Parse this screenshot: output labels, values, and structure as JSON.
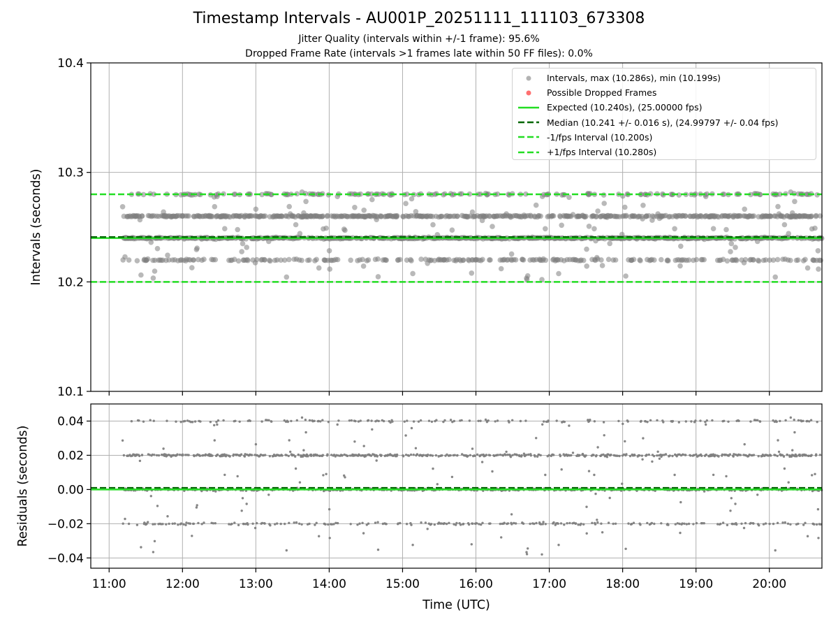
{
  "title": "Timestamp Intervals - AU001P_20251111_111103_673308",
  "subtitle_lines": [
    "Jitter Quality (intervals within +/-1 frame): 95.6%",
    "Dropped Frame Rate (intervals >1 frames late within 50 FF files): 0.0%"
  ],
  "colors": {
    "points": "#808080",
    "dropped": "#ff3333",
    "expected": "#22dd22",
    "median": "#006600",
    "bounds": "#22dd22",
    "grid": "#b0b0b0"
  },
  "legend": [
    {
      "key": "intervals",
      "label": "Intervals, max (10.286s), min (10.199s)"
    },
    {
      "key": "dropped",
      "label": "Possible Dropped Frames"
    },
    {
      "key": "expected",
      "label": "Expected (10.240s), (25.00000 fps)"
    },
    {
      "key": "median",
      "label": "Median (10.241 +/- 0.016 s), (24.99797 +/- 0.04 fps)"
    },
    {
      "key": "minus",
      "label": "-1/fps Interval (10.200s)"
    },
    {
      "key": "plus",
      "label": "+1/fps Interval (10.280s)"
    }
  ],
  "chart_data": [
    {
      "type": "scatter",
      "name": "intervals",
      "xlabel": "",
      "ylabel": "Intervals (seconds)",
      "ylim": [
        10.1,
        10.4
      ],
      "yticks": [
        10.1,
        10.2,
        10.3,
        10.4
      ],
      "yticklabels": [
        "10.1",
        "10.2",
        "10.3",
        "10.4"
      ],
      "xlim": [
        "10:45",
        "20:43"
      ],
      "grid": true,
      "legend_position": "top-right",
      "max": 10.286,
      "min": 10.199,
      "expected": 10.24,
      "expected_fps": 25.0,
      "median": 10.241,
      "median_std": 0.016,
      "median_fps": 24.99797,
      "minus_1fps": 10.2,
      "plus_1fps": 10.28,
      "dropped_frames": 0,
      "point_bands": [
        {
          "value": 10.22,
          "share": 0.14
        },
        {
          "value": 10.24,
          "share": 0.37
        },
        {
          "value": 10.26,
          "share": 0.35
        },
        {
          "value": 10.28,
          "share": 0.1
        }
      ],
      "time_range": [
        "11:11",
        "20:43"
      ]
    },
    {
      "type": "scatter",
      "name": "residuals",
      "xlabel": "Time (UTC)",
      "ylabel": "Residuals (seconds)",
      "ylim": [
        -0.046,
        0.05
      ],
      "yticks": [
        -0.04,
        -0.02,
        0.0,
        0.02,
        0.04
      ],
      "yticklabels": [
        "−0.04",
        "−0.02",
        "0.00",
        "0.02",
        "0.04"
      ],
      "xlim": [
        "10:45",
        "20:43"
      ],
      "xticks": [
        "11:00",
        "12:00",
        "13:00",
        "14:00",
        "15:00",
        "16:00",
        "17:00",
        "18:00",
        "19:00",
        "20:00"
      ],
      "grid": true,
      "max": 0.046,
      "min": -0.041,
      "expected_line": 0.0,
      "median_line": 0.001,
      "point_bands": [
        {
          "value": -0.02,
          "share": 0.14
        },
        {
          "value": 0.0,
          "share": 0.37
        },
        {
          "value": 0.02,
          "share": 0.35
        },
        {
          "value": 0.04,
          "share": 0.1
        }
      ],
      "time_range": [
        "11:11",
        "20:43"
      ]
    }
  ]
}
